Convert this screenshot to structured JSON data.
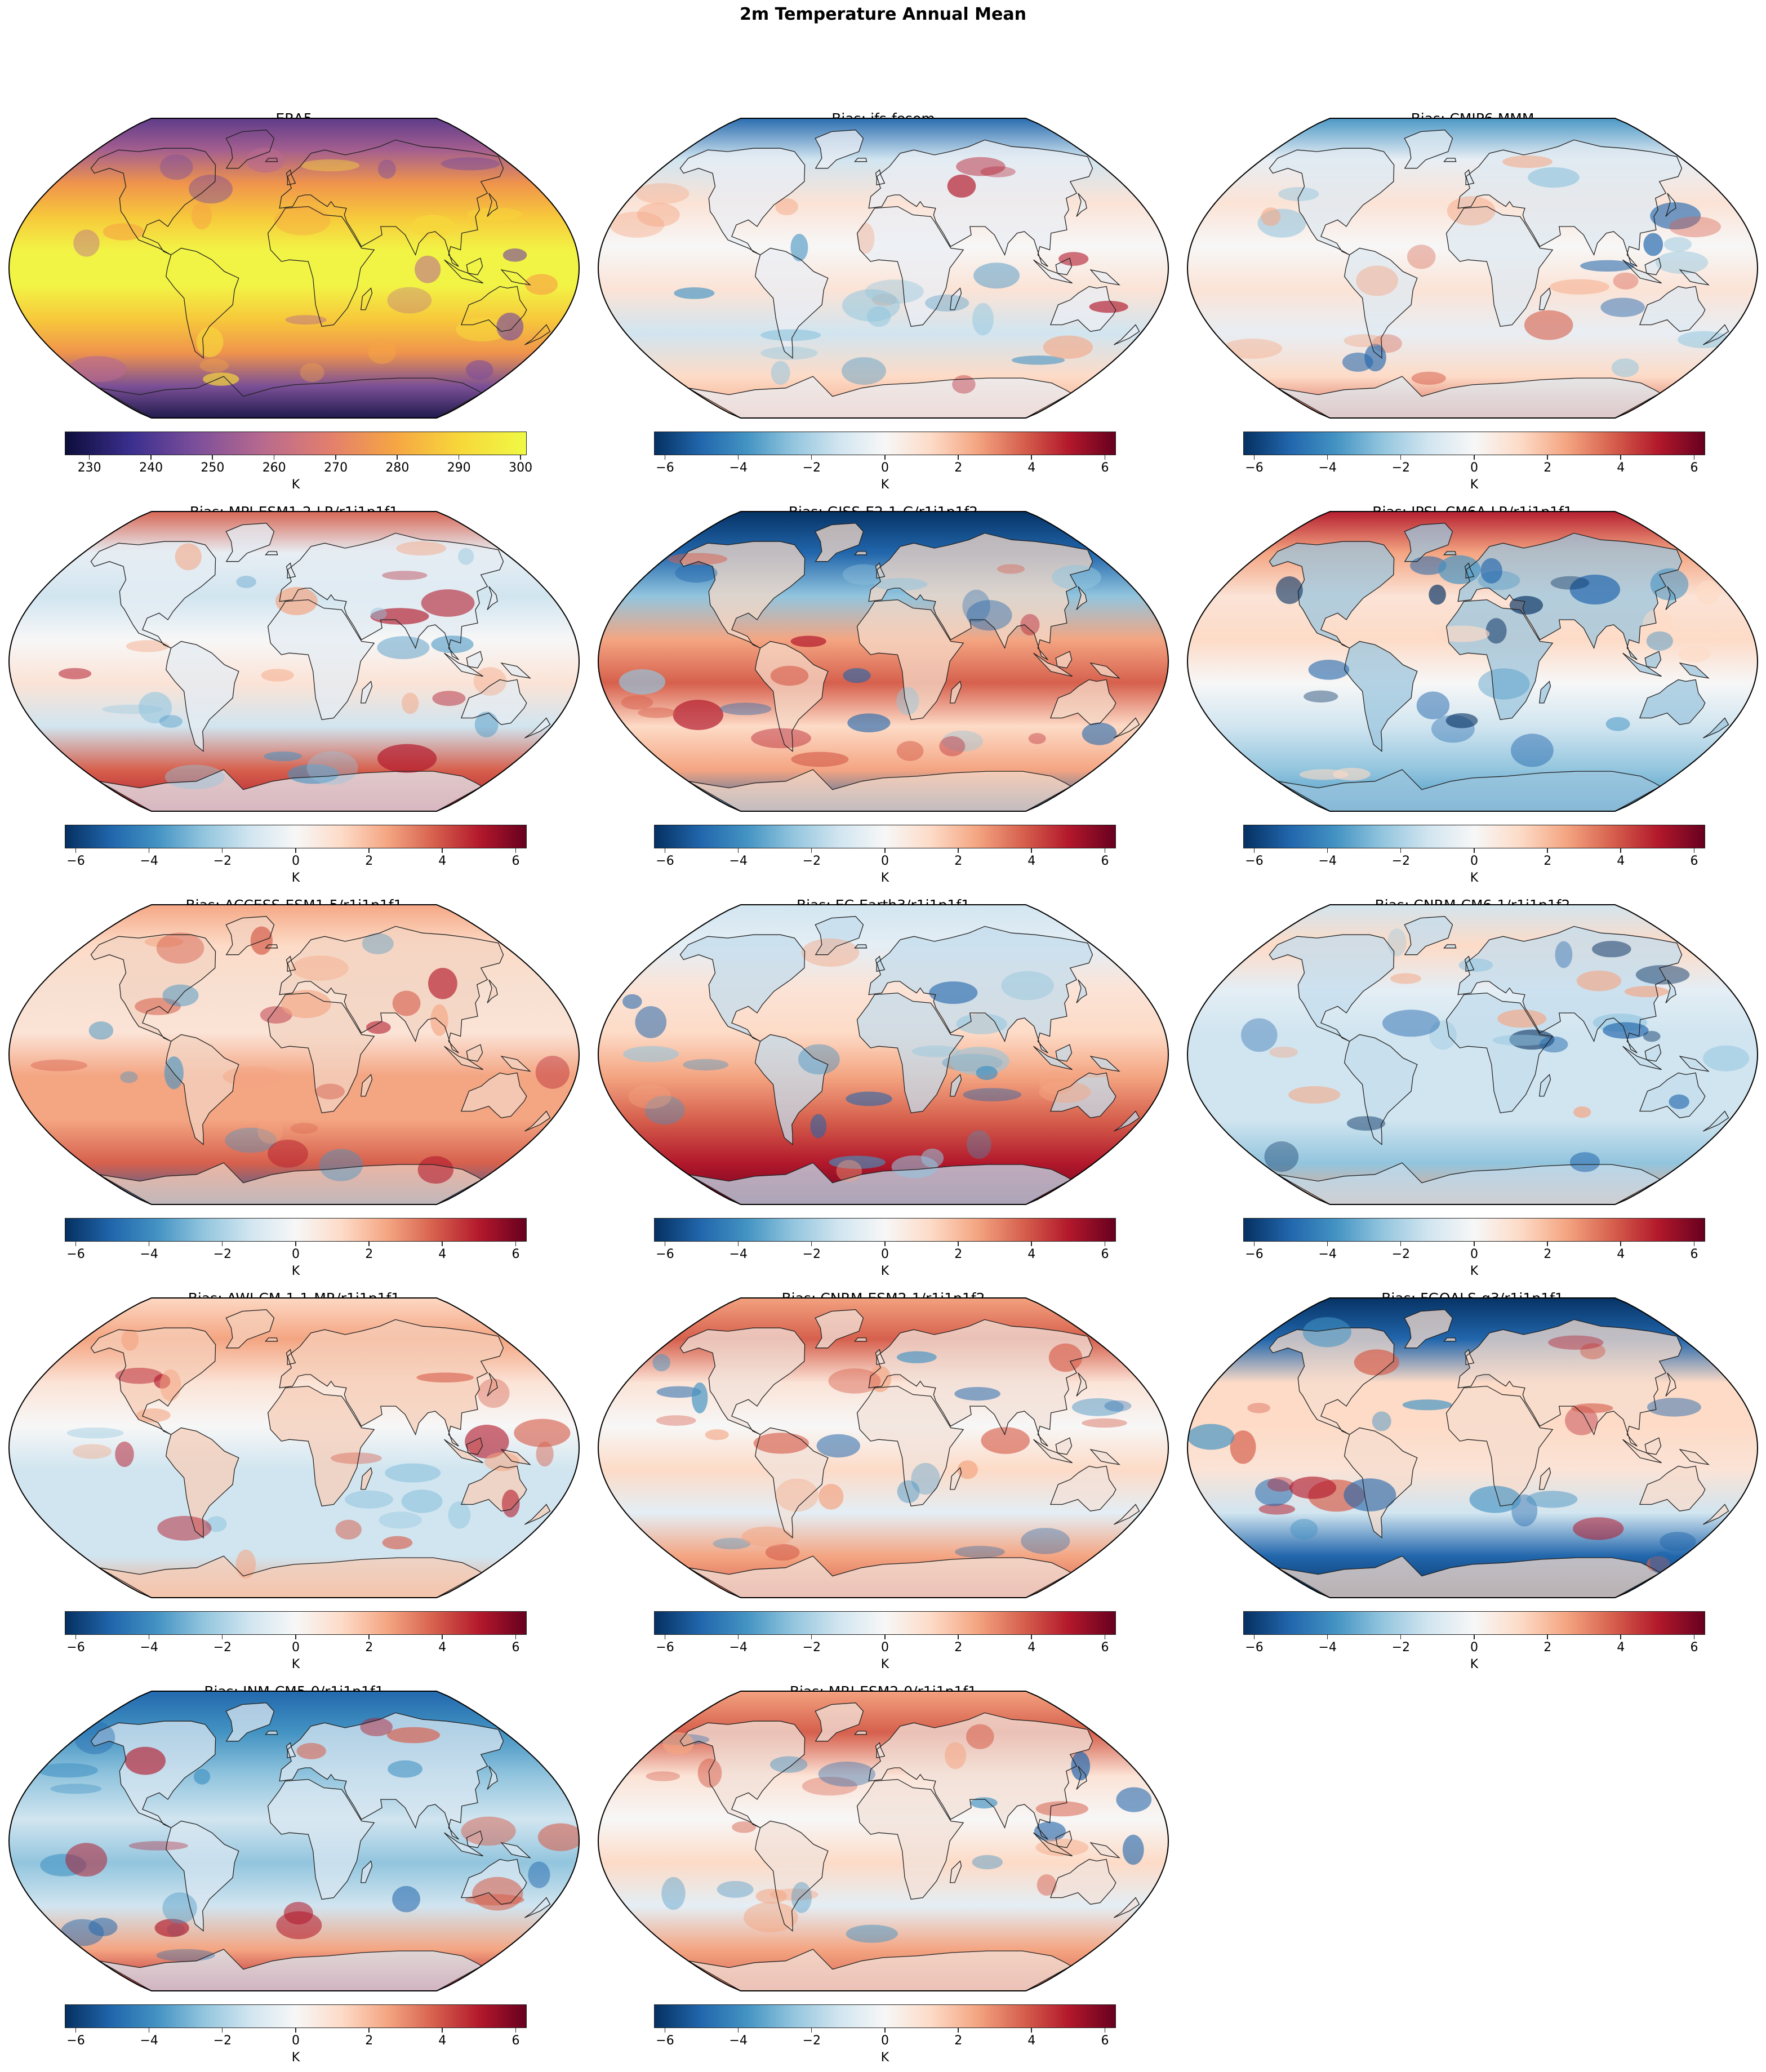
{
  "figure": {
    "title": "2m Temperature Annual Mean"
  },
  "colormaps": {
    "plasma_like": [
      "#0d0d3a",
      "#3b2f8f",
      "#7d4f9a",
      "#b86a8e",
      "#e27e6e",
      "#f6a544",
      "#f7d83a",
      "#f0f944"
    ],
    "rdbu_r": [
      "#053061",
      "#2166ac",
      "#4393c3",
      "#92c5de",
      "#d1e5f0",
      "#f7f7f7",
      "#fddbc7",
      "#f4a582",
      "#d6604d",
      "#b2182b",
      "#67001f"
    ]
  },
  "colorbars": {
    "era5": {
      "cmap": "plasma_like",
      "min": 226,
      "max": 301,
      "ticks": [
        "230",
        "240",
        "250",
        "260",
        "270",
        "280",
        "290",
        "300"
      ],
      "tick_values": [
        230,
        240,
        250,
        260,
        270,
        280,
        290,
        300
      ],
      "label": "K"
    },
    "bias": {
      "cmap": "rdbu_r",
      "min": -6.3,
      "max": 6.3,
      "ticks": [
        "−6",
        "−4",
        "−2",
        "0",
        "2",
        "4",
        "6"
      ],
      "tick_values": [
        -6,
        -4,
        -2,
        0,
        2,
        4,
        6
      ],
      "label": "K"
    }
  },
  "panels": [
    {
      "title": "ERA5",
      "kind": "era5",
      "colorbar": "era5"
    },
    {
      "title": "Bias: ifs-fesom",
      "kind": "bias",
      "colorbar": "bias",
      "tone": "mixed-cold-arctic"
    },
    {
      "title": "Bias: CMIP6 MMM",
      "kind": "bias",
      "colorbar": "bias",
      "tone": "mixed"
    },
    {
      "title": "Bias: MPI-ESM1-2-LR/r1i1p1f1",
      "kind": "bias",
      "colorbar": "bias",
      "tone": "warm-south"
    },
    {
      "title": "Bias: GISS-E2-1-G/r1i1p1f2",
      "kind": "bias",
      "colorbar": "bias",
      "tone": "cold-north"
    },
    {
      "title": "Bias: IPSL-CM6A-LR/r1i1p1f1",
      "kind": "bias",
      "colorbar": "bias",
      "tone": "cold-land"
    },
    {
      "title": "Bias: ACCESS-ESM1-5/r1i1p1f1",
      "kind": "bias",
      "colorbar": "bias",
      "tone": "warm"
    },
    {
      "title": "Bias: EC-Earth3/r1i1p1f1",
      "kind": "bias",
      "colorbar": "bias",
      "tone": "warm-south-strong"
    },
    {
      "title": "Bias: CNRM-CM6-1/r1i1p1f2",
      "kind": "bias",
      "colorbar": "bias",
      "tone": "cold-ocean"
    },
    {
      "title": "Bias: AWI-CM-1-1-MR/r1i1p1f1",
      "kind": "bias",
      "colorbar": "bias",
      "tone": "warm-land"
    },
    {
      "title": "Bias: CNRM-ESM2-1/r1i1p1f2",
      "kind": "bias",
      "colorbar": "bias",
      "tone": "mixed-warm"
    },
    {
      "title": "Bias: FGOALS-g3/r1i1p1f1",
      "kind": "bias",
      "colorbar": "bias",
      "tone": "cold-poles"
    },
    {
      "title": "Bias: INM-CM5-0/r1i1p1f1",
      "kind": "bias",
      "colorbar": "bias",
      "tone": "cold"
    },
    {
      "title": "Bias: MRI-ESM2-0/r1i1p1f1",
      "kind": "bias",
      "colorbar": "bias",
      "tone": "mixed-warm"
    }
  ]
}
